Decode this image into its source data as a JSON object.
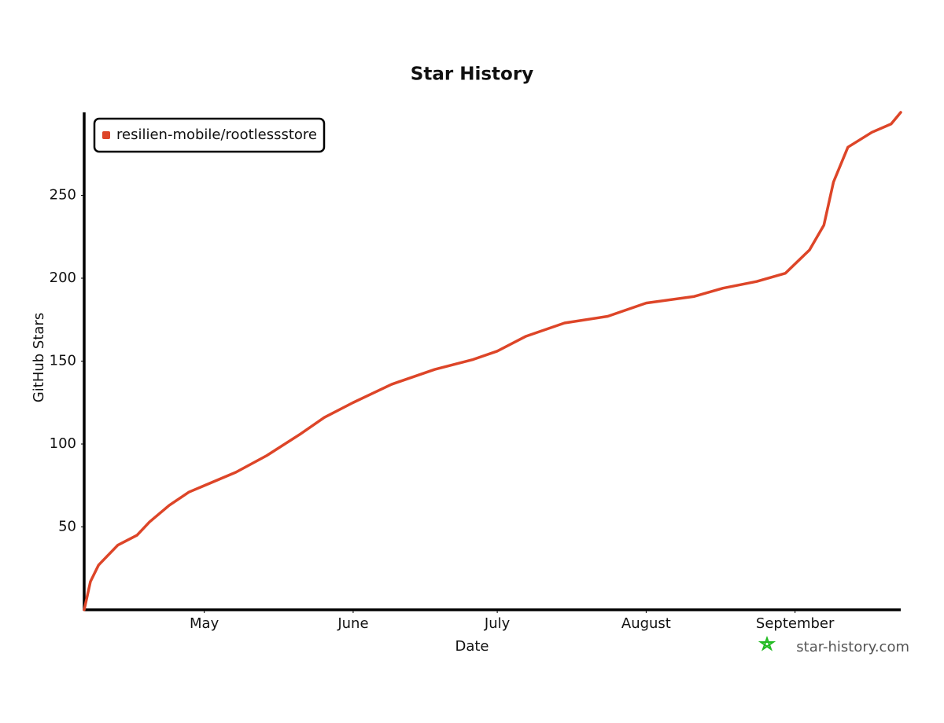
{
  "chart_data": {
    "type": "line",
    "title": "Star History",
    "x_label": "Date",
    "y_label": "GitHub Stars",
    "watermark": "star-history.com",
    "xlim": [
      0,
      170
    ],
    "xticks": [
      {
        "value": 25,
        "label": "May"
      },
      {
        "value": 56,
        "label": "June"
      },
      {
        "value": 86,
        "label": "July"
      },
      {
        "value": 117,
        "label": "August"
      },
      {
        "value": 148,
        "label": "September"
      }
    ],
    "ylim": [
      0,
      300
    ],
    "yticks": [
      50,
      100,
      150,
      200,
      250
    ],
    "grid": false,
    "legend": "top-left",
    "x": [
      0,
      1.3,
      3,
      7,
      11,
      13.6,
      17.7,
      21.8,
      31.6,
      38,
      45,
      50,
      56,
      64,
      73,
      81,
      86,
      92,
      100,
      109,
      117,
      127,
      133,
      140,
      146,
      151,
      154,
      156,
      159,
      164,
      168,
      170
    ],
    "series": [
      {
        "name": "resilien-mobile/rootlessstore",
        "color": "#dd4528",
        "values": [
          0,
          17,
          27,
          39,
          45,
          53,
          63,
          71,
          83,
          93,
          106,
          116,
          125,
          136,
          145,
          151,
          156,
          165,
          173,
          177,
          185,
          189,
          194,
          198,
          203,
          217,
          232,
          258,
          279,
          288,
          293,
          300
        ]
      }
    ]
  }
}
